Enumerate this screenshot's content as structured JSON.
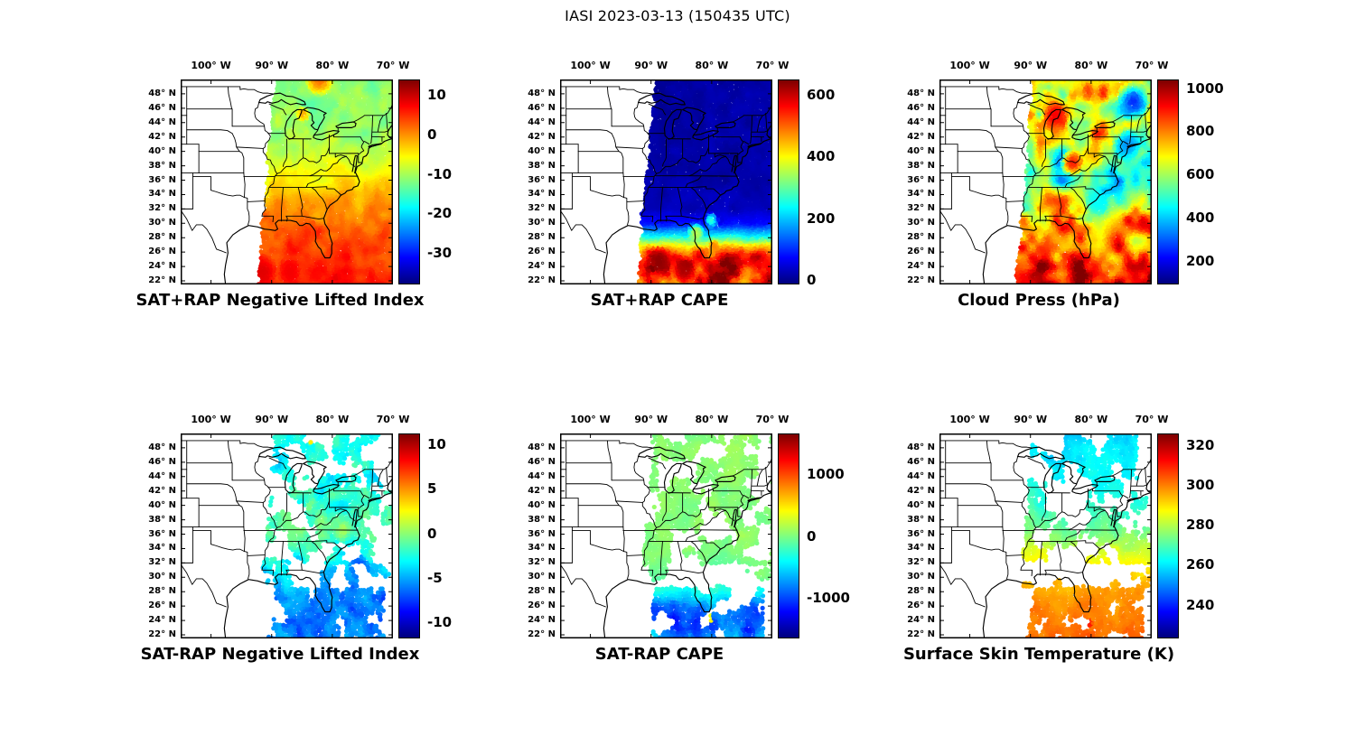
{
  "figure_title": "IASI 2023-03-13 (150435 UTC)",
  "colormap": "jet",
  "axes": {
    "lon_tick_labels": [
      "100° W",
      "90° W",
      "80° W",
      "70° W"
    ],
    "lon_tick_values": [
      -100,
      -90,
      -80,
      -70
    ],
    "lat_tick_labels": [
      "48° N",
      "46° N",
      "44° N",
      "42° N",
      "40° N",
      "38° N",
      "36° N",
      "34° N",
      "32° N",
      "30° N",
      "28° N",
      "26° N",
      "24° N",
      "22° N"
    ],
    "lat_tick_values": [
      48,
      46,
      44,
      42,
      40,
      38,
      36,
      34,
      32,
      30,
      28,
      26,
      24,
      22
    ],
    "lon_range": [
      -105,
      -70
    ],
    "lat_range": [
      21.5,
      50
    ],
    "grid": false
  },
  "swath": {
    "lon_left_at_lat22": -92.2,
    "lon_left_slope_per_deg_lat": 0.1,
    "lon_right": -70
  },
  "chart_data": [
    {
      "type": "scatter",
      "title": "SAT+RAP Negative Lifted Index",
      "row": 0,
      "col": 0,
      "coverage": "full",
      "seed": 1,
      "colorbar": {
        "tick_labels": [
          "10",
          "0",
          "-10",
          "-20",
          "-30"
        ],
        "tick_values": [
          10,
          0,
          -10,
          -20,
          -30
        ],
        "vmin": -38,
        "vmax": 14
      },
      "field": {
        "stops_lat_value": [
          [
            50,
            -12
          ],
          [
            44,
            -11
          ],
          [
            40,
            -10
          ],
          [
            37,
            -6
          ],
          [
            34,
            -2
          ],
          [
            31,
            1
          ],
          [
            29,
            3
          ],
          [
            26,
            5
          ],
          [
            22,
            6
          ]
        ],
        "noise_amp": 3.5,
        "noise_scale": 0.45,
        "south_amp": 0,
        "features": [
          {
            "lon": -84.8,
            "lat": 45.3,
            "r": 1.2,
            "value": -1
          },
          {
            "lon": -91.5,
            "lat": 23.5,
            "r": 2.5,
            "value": 9
          },
          {
            "lon": -87.0,
            "lat": 23.2,
            "r": 2.0,
            "value": 8
          },
          {
            "lon": -82.0,
            "lat": 50.2,
            "r": 2.5,
            "value": 2
          }
        ]
      }
    },
    {
      "type": "scatter",
      "title": "SAT+RAP CAPE",
      "row": 0,
      "col": 1,
      "coverage": "full",
      "seed": 2,
      "colorbar": {
        "tick_labels": [
          "600",
          "400",
          "200",
          "0"
        ],
        "tick_values": [
          600,
          400,
          200,
          0
        ],
        "vmin": -15,
        "vmax": 650
      },
      "field": {
        "stops_lat_value": [
          [
            50,
            10
          ],
          [
            36,
            12
          ],
          [
            32,
            25
          ],
          [
            30,
            80
          ],
          [
            28.5,
            220
          ],
          [
            27,
            420
          ],
          [
            25.5,
            560
          ],
          [
            24,
            600
          ],
          [
            22,
            540
          ]
        ],
        "noise_amp": 18,
        "noise_scale": 0.5,
        "south_amp": 160,
        "features": [
          {
            "lon": -82.5,
            "lat": 28.8,
            "r": 1.5,
            "value": 360
          },
          {
            "lon": -80.0,
            "lat": 30.5,
            "r": 1.2,
            "value": 260
          },
          {
            "lon": -88.5,
            "lat": 25.0,
            "r": 2.0,
            "value": 640
          },
          {
            "lon": -84.5,
            "lat": 23.5,
            "r": 2.0,
            "value": 620
          },
          {
            "lon": -79.5,
            "lat": 27.0,
            "r": 1.0,
            "value": 480
          }
        ]
      }
    },
    {
      "type": "scatter",
      "title": "Cloud Press (hPa)",
      "row": 0,
      "col": 2,
      "coverage": "full",
      "seed": 3,
      "colorbar": {
        "tick_labels": [
          "1000",
          "800",
          "600",
          "400",
          "200"
        ],
        "tick_values": [
          1000,
          800,
          600,
          400,
          200
        ],
        "vmin": 90,
        "vmax": 1040
      },
      "field": {
        "stops_lat_value": [
          [
            50,
            650
          ],
          [
            44,
            680
          ],
          [
            40,
            600
          ],
          [
            36,
            520
          ],
          [
            33,
            600
          ],
          [
            30,
            780
          ],
          [
            27,
            880
          ],
          [
            22,
            900
          ]
        ],
        "noise_amp": 300,
        "noise_scale": 0.33,
        "south_amp": 0,
        "features": [
          {
            "lon": -73.0,
            "lat": 47.0,
            "r": 3.0,
            "value": 250
          },
          {
            "lon": -74.0,
            "lat": 41.0,
            "r": 2.5,
            "value": 350
          },
          {
            "lon": -86.0,
            "lat": 45.0,
            "r": 2.5,
            "value": 930
          },
          {
            "lon": -83.0,
            "lat": 38.5,
            "r": 2.0,
            "value": 900
          },
          {
            "lon": -79.0,
            "lat": 33.0,
            "r": 2.0,
            "value": 450
          }
        ]
      }
    },
    {
      "type": "scatter",
      "title": "SAT-RAP Negative Lifted Index",
      "row": 1,
      "col": 0,
      "coverage": "patchy",
      "seed": 4,
      "colorbar": {
        "tick_labels": [
          "10",
          "5",
          "0",
          "-5",
          "-10"
        ],
        "tick_values": [
          10,
          5,
          0,
          -5,
          -10
        ],
        "vmin": -11.8,
        "vmax": 11.2
      },
      "field": {
        "stops_lat_value": [
          [
            50,
            -2.5
          ],
          [
            44,
            -3
          ],
          [
            40,
            -2
          ],
          [
            37,
            -1
          ],
          [
            34,
            -2
          ],
          [
            31,
            -4
          ],
          [
            28,
            -5.5
          ],
          [
            25,
            -6.5
          ],
          [
            22,
            -6
          ]
        ],
        "noise_amp": 2.2,
        "noise_scale": 0.55,
        "south_amp": 0,
        "features": [
          {
            "lon": -83.5,
            "lat": 49.4,
            "r": 0.9,
            "value": 9
          },
          {
            "lon": -80.5,
            "lat": 49.1,
            "r": 0.7,
            "value": 6
          },
          {
            "lon": -87.0,
            "lat": 36.5,
            "r": 2.5,
            "value": -0.5
          },
          {
            "lon": -75.5,
            "lat": 31.5,
            "r": 2.0,
            "value": -7.5
          },
          {
            "lon": -71.0,
            "lat": 27.0,
            "r": 1.5,
            "value": -8
          }
        ]
      }
    },
    {
      "type": "scatter",
      "title": "SAT-RAP CAPE",
      "row": 1,
      "col": 1,
      "coverage": "patchy",
      "seed": 5,
      "colorbar": {
        "tick_labels": [
          "1000",
          "0",
          "-1000"
        ],
        "tick_values": [
          1000,
          0,
          -1000
        ],
        "vmin": -1650,
        "vmax": 1650
      },
      "field": {
        "stops_lat_value": [
          [
            50,
            40
          ],
          [
            40,
            30
          ],
          [
            34,
            20
          ],
          [
            30,
            -50
          ],
          [
            28,
            -400
          ],
          [
            26,
            -850
          ],
          [
            24,
            -1000
          ],
          [
            22,
            -800
          ]
        ],
        "noise_amp": 120,
        "noise_scale": 0.5,
        "south_amp": 350,
        "features": [
          {
            "lon": -80.3,
            "lat": 24.3,
            "r": 0.6,
            "value": 1300
          },
          {
            "lon": -77.5,
            "lat": 26.3,
            "r": 0.5,
            "value": 800
          }
        ]
      }
    },
    {
      "type": "scatter",
      "title": "Surface Skin Temperature (K)",
      "row": 1,
      "col": 2,
      "coverage": "patchy",
      "seed": 6,
      "colorbar": {
        "tick_labels": [
          "320",
          "300",
          "280",
          "260",
          "240"
        ],
        "tick_values": [
          320,
          300,
          280,
          260,
          240
        ],
        "vmin": 223,
        "vmax": 326
      },
      "field": {
        "stops_lat_value": [
          [
            50,
            258
          ],
          [
            46,
            260
          ],
          [
            43,
            263
          ],
          [
            40,
            266
          ],
          [
            37,
            272
          ],
          [
            35,
            278
          ],
          [
            33,
            285
          ],
          [
            31,
            290
          ],
          [
            29,
            295
          ],
          [
            26,
            299
          ],
          [
            22,
            301
          ]
        ],
        "noise_amp": 5,
        "noise_scale": 0.5,
        "south_amp": 0,
        "features": [
          {
            "lon": -80.3,
            "lat": 23.8,
            "r": 0.7,
            "value": 316
          },
          {
            "lon": -86.0,
            "lat": 47.5,
            "r": 2.0,
            "value": 255
          }
        ]
      }
    }
  ]
}
